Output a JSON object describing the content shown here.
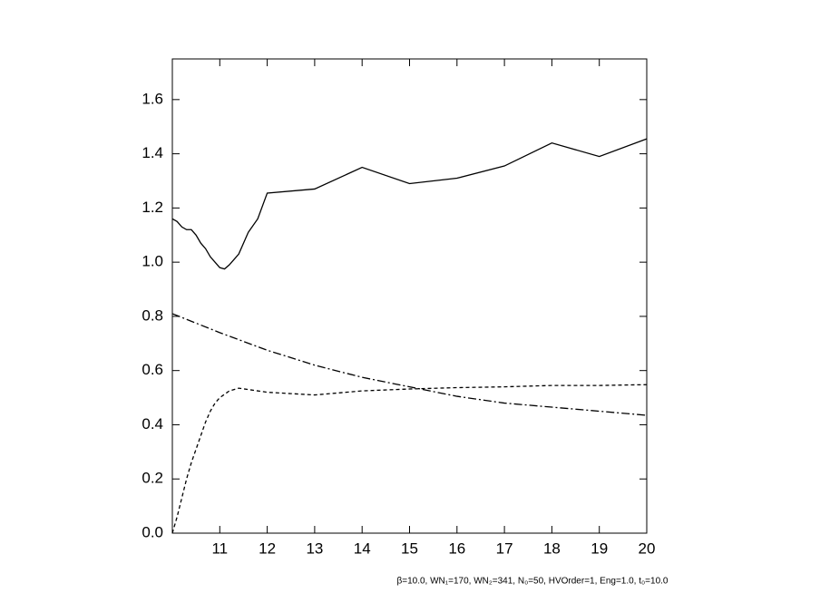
{
  "chart_data": {
    "type": "line",
    "annotation": "β=10.0, WN₁=170, WN₂=341, N₀=50, HVOrder=1, Eng=1.0, t₀=10.0",
    "xlim": [
      10,
      20
    ],
    "xticks": [
      11,
      12,
      13,
      14,
      15,
      16,
      17,
      18,
      19,
      20
    ],
    "ylim": [
      0,
      1.75
    ],
    "yticks": [
      {
        "value": 0,
        "label": "0.0"
      },
      0.2,
      0.4,
      0.6,
      0.8,
      {
        "value": 1,
        "label": "1.0"
      },
      1.2,
      1.4,
      1.6
    ],
    "grid": false,
    "series": [
      {
        "color": "#000000",
        "dash": "solid",
        "x": [
          10.0,
          10.1,
          10.2,
          10.3,
          10.4,
          10.5,
          10.6,
          10.7,
          10.8,
          10.9,
          11.0,
          11.1,
          11.2,
          11.3,
          11.4,
          11.6,
          11.8,
          12,
          13,
          14,
          15,
          16,
          17,
          18,
          19,
          20
        ],
        "values": [
          1.16,
          1.15,
          1.13,
          1.12,
          1.12,
          1.1,
          1.07,
          1.05,
          1.02,
          1.0,
          0.98,
          0.975,
          0.99,
          1.01,
          1.03,
          1.11,
          1.16,
          1.255,
          1.27,
          1.35,
          1.29,
          1.31,
          1.355,
          1.44,
          1.39,
          1.455
        ]
      },
      {
        "color": "#000000",
        "dash": "dashed",
        "x": [
          10.0,
          10.1,
          10.2,
          10.3,
          10.4,
          10.5,
          10.6,
          10.7,
          10.8,
          10.9,
          11.0,
          11.2,
          11.4,
          11.6,
          12,
          12.5,
          13,
          14,
          15,
          16,
          17,
          18,
          19,
          20
        ],
        "values": [
          0.0,
          0.06,
          0.13,
          0.2,
          0.26,
          0.31,
          0.36,
          0.41,
          0.45,
          0.48,
          0.5,
          0.525,
          0.535,
          0.53,
          0.52,
          0.515,
          0.51,
          0.525,
          0.532,
          0.537,
          0.54,
          0.545,
          0.545,
          0.548
        ]
      },
      {
        "color": "#000000",
        "dash": "dashdot",
        "x": [
          10,
          11,
          12,
          13,
          14,
          15,
          16,
          17,
          18,
          19,
          20
        ],
        "values": [
          0.81,
          0.74,
          0.675,
          0.62,
          0.575,
          0.54,
          0.505,
          0.48,
          0.465,
          0.45,
          0.435
        ]
      }
    ]
  }
}
